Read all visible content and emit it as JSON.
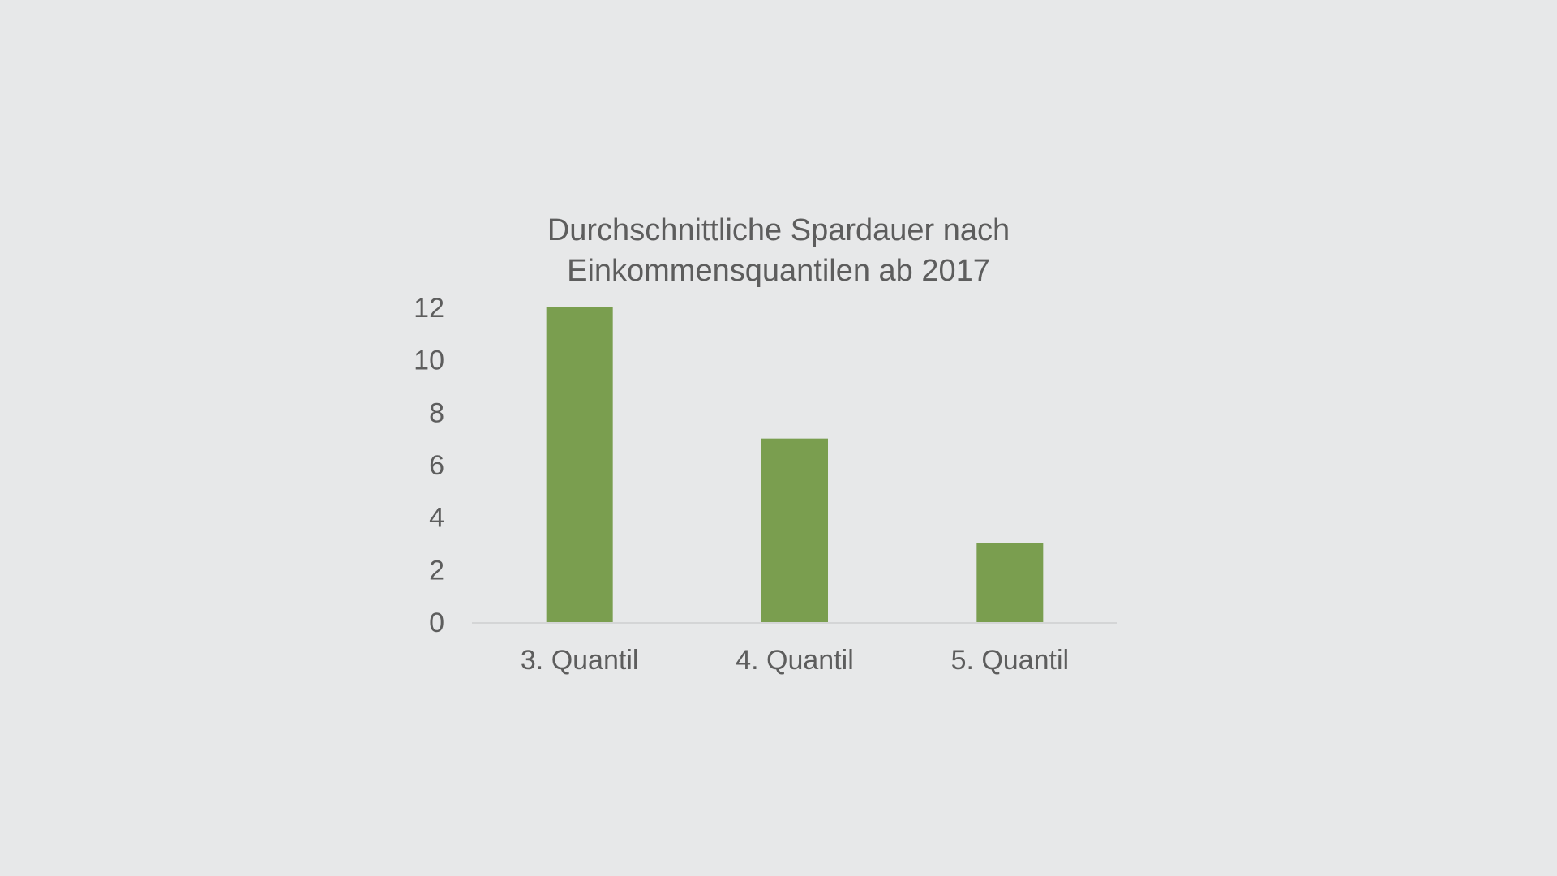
{
  "chart_data": {
    "type": "bar",
    "title_lines": [
      "Durchschnittliche Spardauer nach",
      "Einkommensquantilen ab 2017"
    ],
    "title": "Durchschnittliche Spardauer nach Einkommensquantilen ab 2017",
    "categories": [
      "3. Quantil",
      "4. Quantil",
      "5. Quantil"
    ],
    "values": [
      12,
      7,
      3
    ],
    "xlabel": "",
    "ylabel": "",
    "ylim": [
      0,
      12
    ],
    "yticks": [
      "0",
      "2",
      "4",
      "6",
      "8",
      "10",
      "12"
    ],
    "grid": false,
    "legend": false,
    "bar_color": "#7a9e4f",
    "axis_color": "#d4d5d6",
    "text_color": "#5d5d5d"
  }
}
